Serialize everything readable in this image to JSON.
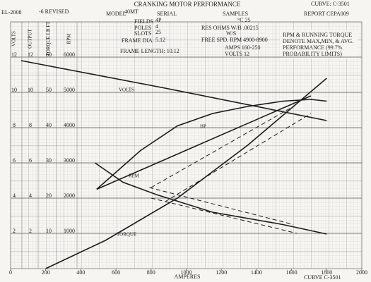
{
  "chart_data": {
    "type": "line",
    "title": "CRANKING MOTOR PERFORMANCE",
    "header": {
      "code": "EL-2008",
      "revision": "-6 REVISED",
      "curve": "CURVE: C-3501",
      "model_label": "MODEL",
      "model": "40MT",
      "serial_label": "SERIAL",
      "samples_label": "SAMPLES",
      "temperature": "°C 25",
      "report": "REPORT CEPA009",
      "fields_label": "FIELDS",
      "fields": "4P",
      "poles_label": "POLES",
      "poles": "4",
      "slots_label": "SLOTS",
      "slots": "25",
      "frame_dia_label": "FRAME DIA.",
      "frame_dia": "5.12",
      "frame_length": "FRAME LENGTH: 10.12",
      "res_ohms": "RES OHMS W/B .00215",
      "ws": "W/S",
      "free_speed": "FREE SPD. RPM 4900-8900",
      "amps": "AMPS 160-250",
      "volts": "VOLTS 12",
      "curve_bottom": "CURVE C-3501"
    },
    "note": [
      "RPM & RUNNING TORQUE",
      "DENOTE MAX,MIN, & AVG.",
      "PERFORMANCE (99.7%",
      "PROBABILITY LIMITS)"
    ],
    "xlabel": "AMPERES",
    "xlim": [
      0,
      2000
    ],
    "xticks": [
      0,
      200,
      400,
      600,
      800,
      1000,
      1200,
      1400,
      1600,
      1800,
      2000
    ],
    "yaxes": [
      {
        "label": "VOLTS",
        "ylim": [
          0,
          14
        ],
        "yticks": [
          2,
          4,
          6,
          8,
          10,
          12
        ]
      },
      {
        "label": "OUTPUT",
        "ylim": [
          0,
          14
        ],
        "yticks": [
          2,
          4,
          6,
          8,
          10,
          12
        ]
      },
      {
        "label": "TORQUE LB FT",
        "ylim": [
          0,
          70
        ],
        "yticks": [
          10,
          20,
          30,
          40,
          50,
          60
        ]
      },
      {
        "label": "RPM",
        "ylim": [
          0,
          7000
        ],
        "yticks": [
          1000,
          2000,
          3000,
          4000,
          5000,
          6000
        ]
      }
    ],
    "grid": true,
    "series": [
      {
        "name": "VOLTS",
        "color": "#1a1a1a",
        "axis": 0,
        "x": [
          60,
          900,
          1800
        ],
        "values": [
          11.8,
          10.2,
          8.4
        ]
      },
      {
        "name": "HP",
        "color": "#1a1a1a",
        "axis": 1,
        "x": [
          490,
          740,
          950,
          1150,
          1350,
          1550,
          1710,
          1800
        ],
        "values": [
          4.5,
          6.7,
          8.1,
          8.8,
          9.2,
          9.5,
          9.6,
          9.5
        ]
      },
      {
        "name": "RPM",
        "color": "#1a1a1a",
        "axis": 3,
        "x": [
          480,
          640,
          830,
          1150,
          1550,
          1800
        ],
        "values": [
          3000,
          2450,
          2100,
          1600,
          1250,
          980
        ]
      },
      {
        "name": "TORQUE",
        "color": "#1a1a1a",
        "axis": 2,
        "x": [
          200,
          540,
          950,
          1350,
          1800
        ],
        "values": [
          0,
          8,
          20,
          35,
          54
        ]
      },
      {
        "color": "#1a1a1a",
        "axis": 2,
        "x": [
          490,
          1710
        ],
        "values": [
          22.5,
          49
        ]
      },
      {
        "color": "#1a1a1a",
        "axis": 2,
        "dash": true,
        "x": [
          800,
          1610
        ],
        "values": [
          23,
          46
        ]
      },
      {
        "color": "#1a1a1a",
        "axis": 2,
        "dash": true,
        "x": [
          880,
          1710
        ],
        "values": [
          19,
          44
        ]
      },
      {
        "color": "#1a1a1a",
        "axis": 3,
        "dash": true,
        "x": [
          790,
          1610
        ],
        "values": [
          2300,
          1250
        ]
      },
      {
        "color": "#1a1a1a",
        "axis": 3,
        "dash": true,
        "x": [
          800,
          1630
        ],
        "values": [
          2000,
          1000
        ]
      }
    ]
  }
}
